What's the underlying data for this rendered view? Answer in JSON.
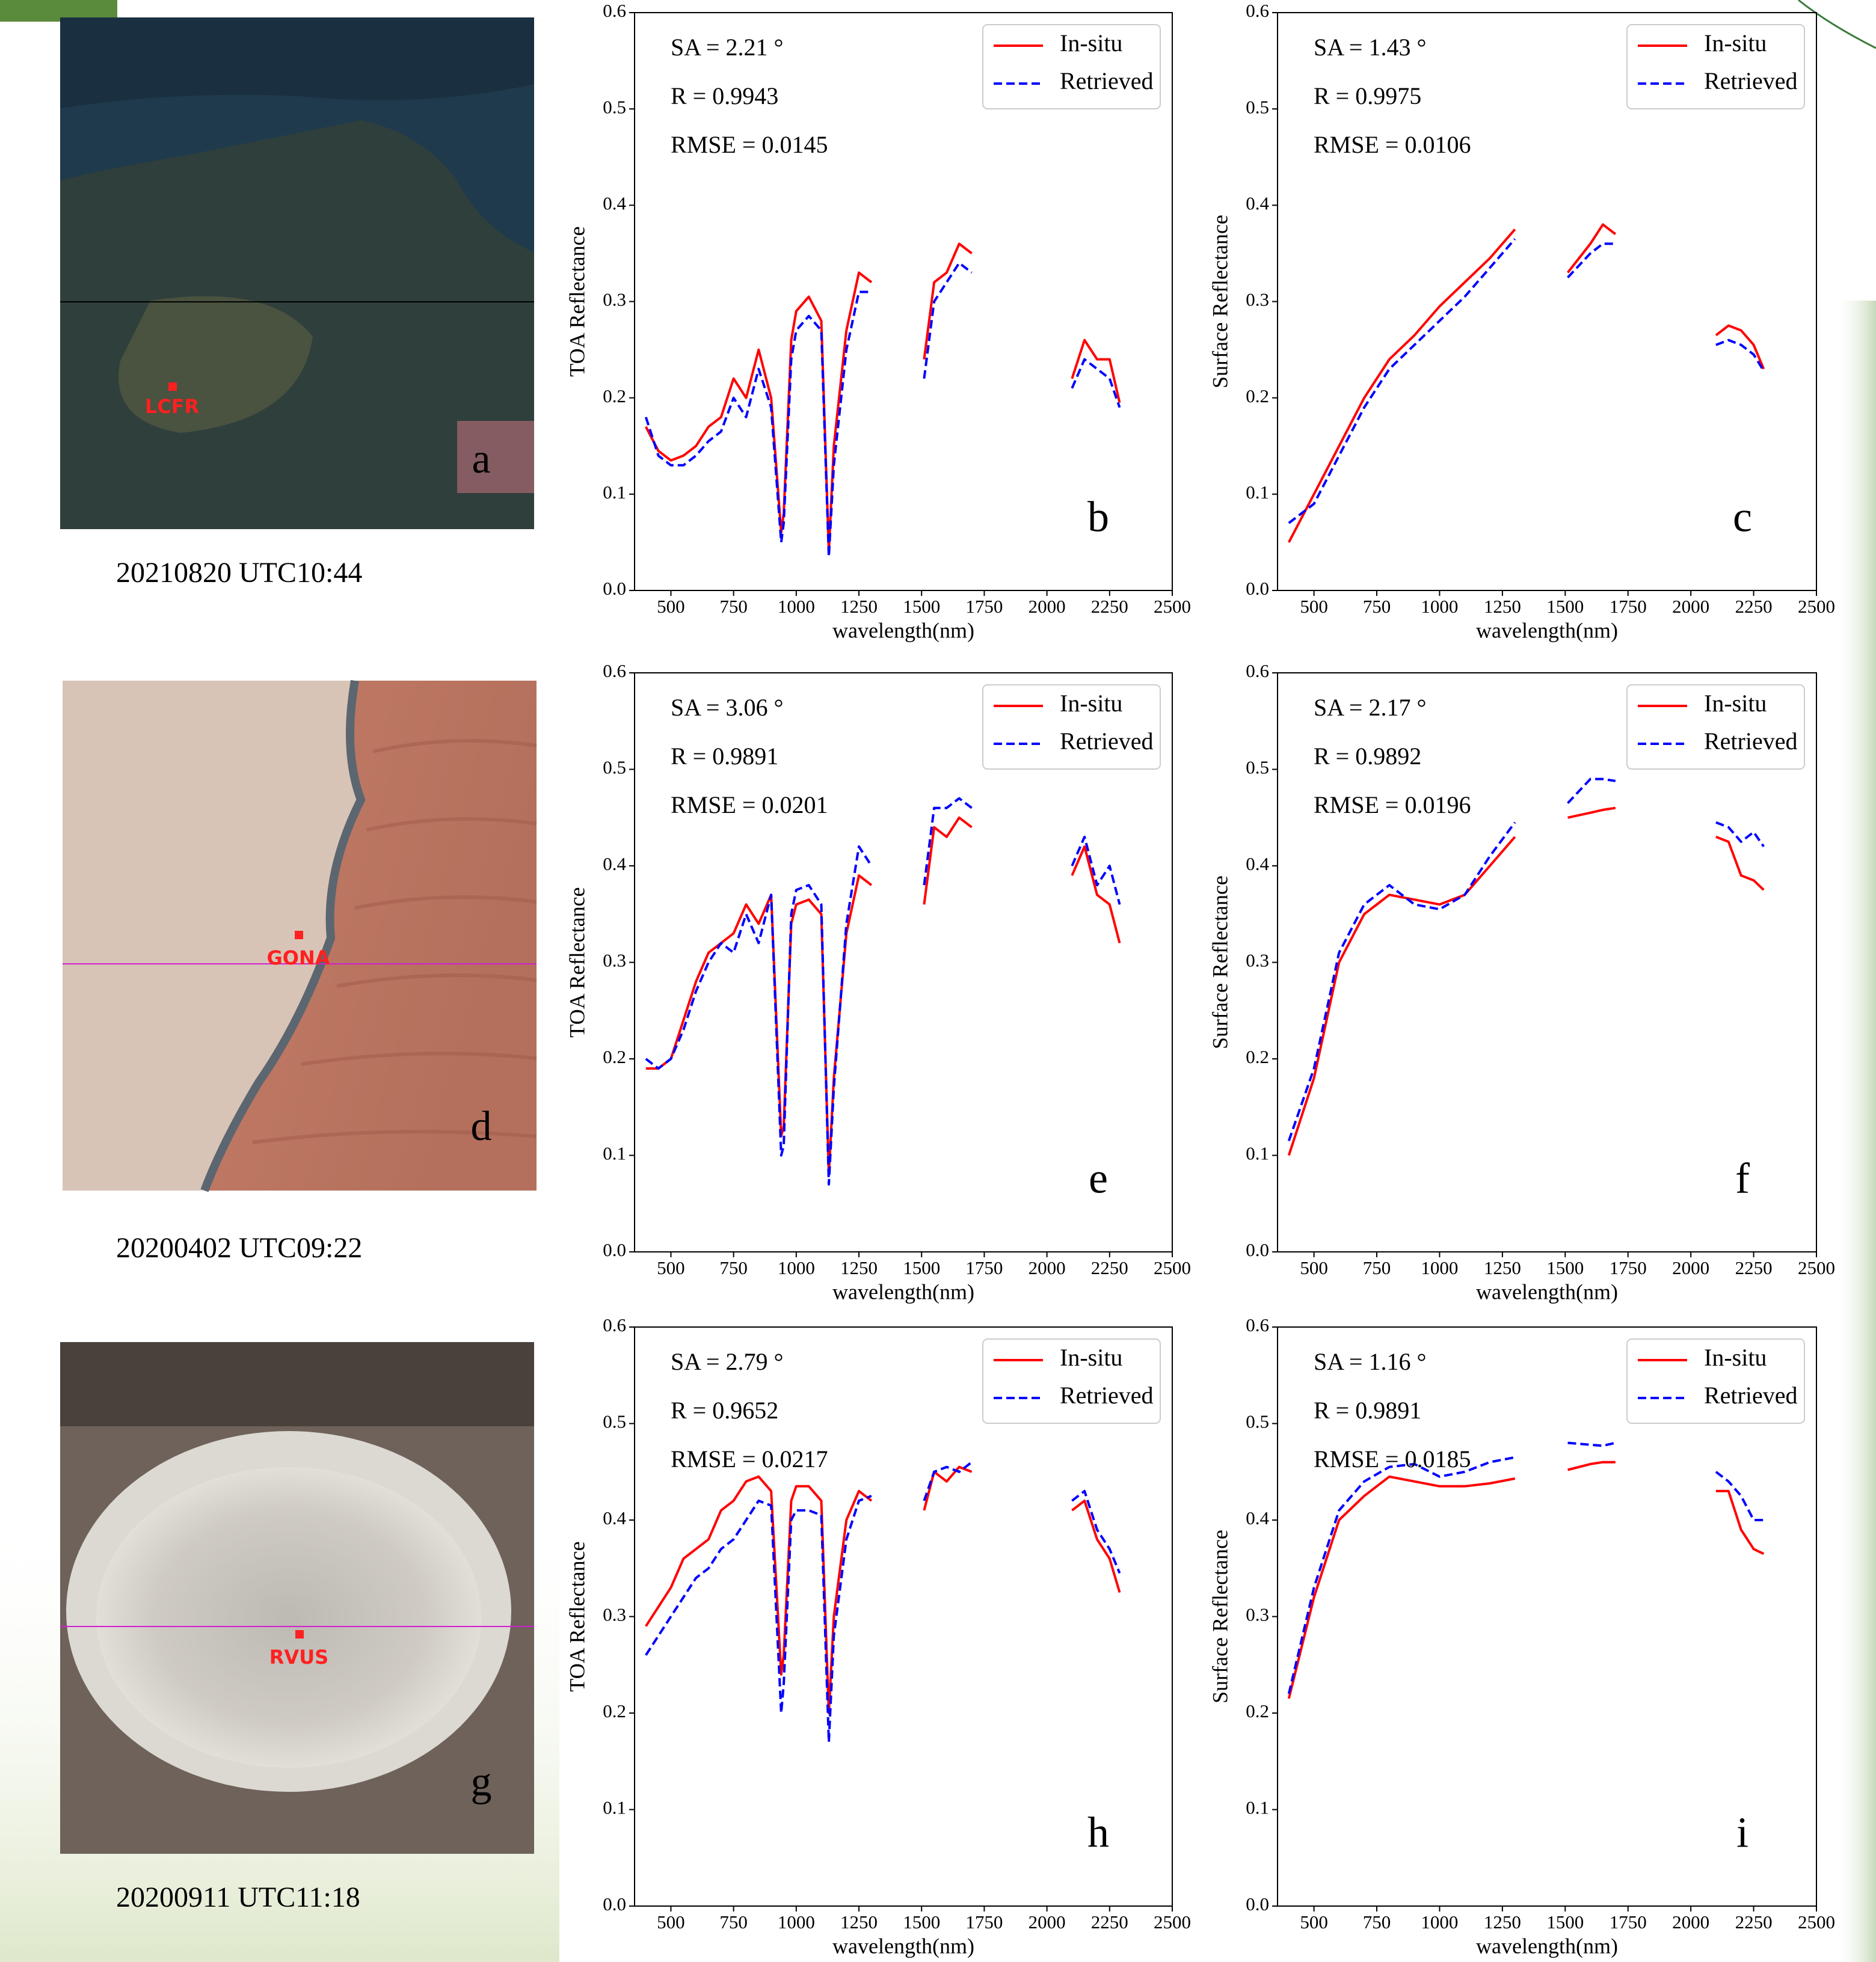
{
  "images": [
    {
      "letter": "a",
      "site": "LCFR",
      "date": "20210820 UTC10:44"
    },
    {
      "letter": "d",
      "site": "GONA",
      "date": "20200402 UTC09:22"
    },
    {
      "letter": "g",
      "site": "RVUS",
      "date": "20200911 UTC11:18"
    }
  ],
  "chart_data": [
    {
      "type": "line",
      "panel_label": "b",
      "ylabel": "TOA Reflectance",
      "xlabel": "wavelength(nm)",
      "annotations": [
        "SA = 2.21 °",
        "R = 0.9943",
        "RMSE = 0.0145"
      ],
      "legend": "upper right",
      "xlim": [
        355,
        2500
      ],
      "ylim": [
        0,
        0.6
      ],
      "xticks": [
        500,
        750,
        1000,
        1250,
        1500,
        1750,
        2000,
        2250,
        2500
      ],
      "yticks": [
        {
          "value": 0,
          "label": "0.0"
        },
        0.1,
        0.2,
        0.3,
        0.4,
        0.5,
        0.6
      ],
      "x": [
        400,
        450,
        500,
        550,
        600,
        650,
        700,
        750,
        800,
        850,
        900,
        940,
        950,
        980,
        1000,
        1050,
        1100,
        1130,
        1150,
        1200,
        1250,
        1300,
        1400,
        1510,
        1550,
        1600,
        1650,
        1700,
        1900,
        2100,
        2150,
        2200,
        2250,
        2290
      ],
      "series": [
        {
          "name": "In-situ",
          "color": "#ff0000",
          "linestyle": "solid",
          "values": [
            0.17,
            0.145,
            0.135,
            0.14,
            0.15,
            0.17,
            0.18,
            0.22,
            0.2,
            0.25,
            0.2,
            0.06,
            0.08,
            0.26,
            0.29,
            0.305,
            0.28,
            0.04,
            0.15,
            0.27,
            0.33,
            0.32,
            null,
            0.24,
            0.32,
            0.33,
            0.36,
            0.35,
            null,
            0.22,
            0.26,
            0.24,
            0.24,
            0.195
          ]
        },
        {
          "name": "Retrieved",
          "color": "#0000ff",
          "linestyle": "dashed",
          "values": [
            0.18,
            0.14,
            0.13,
            0.13,
            0.14,
            0.155,
            0.165,
            0.2,
            0.18,
            0.23,
            0.19,
            0.05,
            0.07,
            0.24,
            0.27,
            0.285,
            0.27,
            0.035,
            0.13,
            0.25,
            0.31,
            0.31,
            null,
            0.22,
            0.3,
            0.32,
            0.34,
            0.33,
            null,
            0.21,
            0.24,
            0.23,
            0.22,
            0.19
          ]
        }
      ]
    },
    {
      "type": "line",
      "panel_label": "c",
      "ylabel": "Surface Reflectance",
      "xlabel": "wavelength(nm)",
      "annotations": [
        "SA = 1.43 °",
        "R = 0.9975",
        "RMSE = 0.0106"
      ],
      "legend": "upper right",
      "xlim": [
        355,
        2500
      ],
      "ylim": [
        0,
        0.6
      ],
      "xticks": [
        500,
        750,
        1000,
        1250,
        1500,
        1750,
        2000,
        2250,
        2500
      ],
      "yticks": [
        {
          "value": 0,
          "label": "0.0"
        },
        0.1,
        0.2,
        0.3,
        0.4,
        0.5,
        0.6
      ],
      "x": [
        400,
        500,
        600,
        700,
        800,
        900,
        1000,
        1100,
        1200,
        1300,
        1400,
        1510,
        1600,
        1650,
        1700,
        1900,
        2100,
        2150,
        2200,
        2250,
        2290
      ],
      "series": [
        {
          "name": "In-situ",
          "color": "#ff0000",
          "linestyle": "solid",
          "values": [
            0.05,
            0.1,
            0.15,
            0.2,
            0.24,
            0.265,
            0.295,
            0.32,
            0.345,
            0.375,
            null,
            0.33,
            0.36,
            0.38,
            0.37,
            null,
            0.265,
            0.275,
            0.27,
            0.255,
            0.23
          ]
        },
        {
          "name": "Retrieved",
          "color": "#0000ff",
          "linestyle": "dashed",
          "values": [
            0.07,
            0.09,
            0.14,
            0.19,
            0.23,
            0.255,
            0.28,
            0.305,
            0.335,
            0.365,
            null,
            0.325,
            0.35,
            0.36,
            0.36,
            null,
            0.255,
            0.26,
            0.255,
            0.245,
            0.228
          ]
        }
      ]
    },
    {
      "type": "line",
      "panel_label": "e",
      "ylabel": "TOA Reflectance",
      "xlabel": "wavelength(nm)",
      "annotations": [
        "SA = 3.06 °",
        "R = 0.9891",
        "RMSE = 0.0201"
      ],
      "legend": "upper right",
      "xlim": [
        355,
        2500
      ],
      "ylim": [
        0,
        0.6
      ],
      "xticks": [
        500,
        750,
        1000,
        1250,
        1500,
        1750,
        2000,
        2250,
        2500
      ],
      "yticks": [
        {
          "value": 0,
          "label": "0.0"
        },
        0.1,
        0.2,
        0.3,
        0.4,
        0.5,
        0.6
      ],
      "x": [
        400,
        450,
        500,
        550,
        600,
        650,
        700,
        750,
        800,
        850,
        900,
        940,
        950,
        980,
        1000,
        1050,
        1100,
        1130,
        1150,
        1200,
        1250,
        1300,
        1400,
        1510,
        1550,
        1600,
        1650,
        1700,
        1900,
        2100,
        2150,
        2200,
        2250,
        2290
      ],
      "series": [
        {
          "name": "In-situ",
          "color": "#ff0000",
          "linestyle": "solid",
          "values": [
            0.19,
            0.19,
            0.2,
            0.24,
            0.28,
            0.31,
            0.32,
            0.33,
            0.36,
            0.34,
            0.37,
            0.12,
            0.13,
            0.34,
            0.36,
            0.365,
            0.35,
            0.08,
            0.18,
            0.33,
            0.39,
            0.38,
            null,
            0.36,
            0.44,
            0.43,
            0.45,
            0.44,
            null,
            0.39,
            0.42,
            0.37,
            0.36,
            0.32
          ]
        },
        {
          "name": "Retrieved",
          "color": "#0000ff",
          "linestyle": "dashed",
          "values": [
            0.2,
            0.19,
            0.2,
            0.23,
            0.27,
            0.3,
            0.32,
            0.31,
            0.35,
            0.32,
            0.37,
            0.1,
            0.11,
            0.35,
            0.375,
            0.38,
            0.36,
            0.07,
            0.17,
            0.34,
            0.42,
            0.4,
            null,
            0.38,
            0.46,
            0.46,
            0.47,
            0.46,
            null,
            0.4,
            0.43,
            0.38,
            0.4,
            0.36
          ]
        }
      ]
    },
    {
      "type": "line",
      "panel_label": "f",
      "ylabel": "Surface Reflectance",
      "xlabel": "wavelength(nm)",
      "annotations": [
        "SA = 2.17 °",
        "R = 0.9892",
        "RMSE = 0.0196"
      ],
      "legend": "upper right",
      "xlim": [
        355,
        2500
      ],
      "ylim": [
        0,
        0.6
      ],
      "xticks": [
        500,
        750,
        1000,
        1250,
        1500,
        1750,
        2000,
        2250,
        2500
      ],
      "yticks": [
        {
          "value": 0,
          "label": "0.0"
        },
        0.1,
        0.2,
        0.3,
        0.4,
        0.5,
        0.6
      ],
      "x": [
        400,
        500,
        600,
        700,
        800,
        900,
        1000,
        1100,
        1200,
        1300,
        1400,
        1510,
        1600,
        1650,
        1700,
        1900,
        2100,
        2150,
        2200,
        2250,
        2290
      ],
      "series": [
        {
          "name": "In-situ",
          "color": "#ff0000",
          "linestyle": "solid",
          "values": [
            0.1,
            0.18,
            0.3,
            0.35,
            0.37,
            0.365,
            0.36,
            0.37,
            0.4,
            0.43,
            null,
            0.45,
            0.455,
            0.458,
            0.46,
            null,
            0.43,
            0.425,
            0.39,
            0.385,
            0.375
          ]
        },
        {
          "name": "Retrieved",
          "color": "#0000ff",
          "linestyle": "dashed",
          "values": [
            0.115,
            0.19,
            0.31,
            0.36,
            0.38,
            0.36,
            0.355,
            0.37,
            0.41,
            0.445,
            null,
            0.465,
            0.49,
            0.49,
            0.488,
            null,
            0.445,
            0.44,
            0.425,
            0.435,
            0.42
          ]
        }
      ]
    },
    {
      "type": "line",
      "panel_label": "h",
      "ylabel": "TOA Reflectance",
      "xlabel": "wavelength(nm)",
      "annotations": [
        "SA = 2.79 °",
        "R = 0.9652",
        "RMSE = 0.0217"
      ],
      "legend": "upper right",
      "xlim": [
        355,
        2500
      ],
      "ylim": [
        0,
        0.6
      ],
      "xticks": [
        500,
        750,
        1000,
        1250,
        1500,
        1750,
        2000,
        2250,
        2500
      ],
      "yticks": [
        {
          "value": 0,
          "label": "0.0"
        },
        0.1,
        0.2,
        0.3,
        0.4,
        0.5,
        0.6
      ],
      "x": [
        400,
        450,
        500,
        550,
        600,
        650,
        700,
        750,
        800,
        850,
        900,
        940,
        950,
        980,
        1000,
        1050,
        1100,
        1130,
        1150,
        1200,
        1250,
        1300,
        1400,
        1510,
        1550,
        1600,
        1650,
        1700,
        1900,
        2100,
        2150,
        2200,
        2250,
        2290
      ],
      "series": [
        {
          "name": "In-situ",
          "color": "#ff0000",
          "linestyle": "solid",
          "values": [
            0.29,
            0.31,
            0.33,
            0.36,
            0.37,
            0.38,
            0.41,
            0.42,
            0.44,
            0.445,
            0.43,
            0.24,
            0.26,
            0.42,
            0.435,
            0.435,
            0.42,
            0.2,
            0.3,
            0.4,
            0.43,
            0.42,
            null,
            0.41,
            0.45,
            0.44,
            0.455,
            0.45,
            null,
            0.41,
            0.42,
            0.38,
            0.36,
            0.325
          ]
        },
        {
          "name": "Retrieved",
          "color": "#0000ff",
          "linestyle": "dashed",
          "values": [
            0.26,
            0.28,
            0.3,
            0.32,
            0.34,
            0.35,
            0.37,
            0.38,
            0.4,
            0.42,
            0.415,
            0.2,
            0.23,
            0.4,
            0.41,
            0.41,
            0.405,
            0.17,
            0.28,
            0.38,
            0.42,
            0.425,
            null,
            0.42,
            0.45,
            0.455,
            0.45,
            0.46,
            null,
            0.42,
            0.43,
            0.39,
            0.37,
            0.345
          ]
        }
      ]
    },
    {
      "type": "line",
      "panel_label": "i",
      "ylabel": "Surface Reflectance",
      "xlabel": "wavelength(nm)",
      "annotations": [
        "SA = 1.16 °",
        "R = 0.9891",
        "RMSE = 0.0185"
      ],
      "legend": "upper right",
      "xlim": [
        355,
        2500
      ],
      "ylim": [
        0,
        0.6
      ],
      "xticks": [
        500,
        750,
        1000,
        1250,
        1500,
        1750,
        2000,
        2250,
        2500
      ],
      "yticks": [
        {
          "value": 0,
          "label": "0.0"
        },
        0.1,
        0.2,
        0.3,
        0.4,
        0.5,
        0.6
      ],
      "x": [
        400,
        500,
        600,
        700,
        800,
        900,
        1000,
        1100,
        1200,
        1300,
        1400,
        1510,
        1600,
        1650,
        1700,
        1900,
        2100,
        2150,
        2200,
        2250,
        2290
      ],
      "series": [
        {
          "name": "In-situ",
          "color": "#ff0000",
          "linestyle": "solid",
          "values": [
            0.215,
            0.32,
            0.4,
            0.425,
            0.445,
            0.44,
            0.435,
            0.435,
            0.438,
            0.443,
            null,
            0.452,
            0.458,
            0.46,
            0.46,
            null,
            0.43,
            0.43,
            0.39,
            0.37,
            0.365
          ]
        },
        {
          "name": "Retrieved",
          "color": "#0000ff",
          "linestyle": "dashed",
          "values": [
            0.22,
            0.33,
            0.41,
            0.44,
            0.455,
            0.458,
            0.445,
            0.45,
            0.46,
            0.465,
            null,
            0.48,
            0.478,
            0.477,
            0.48,
            null,
            0.45,
            0.44,
            0.425,
            0.4,
            0.4
          ]
        }
      ]
    }
  ]
}
